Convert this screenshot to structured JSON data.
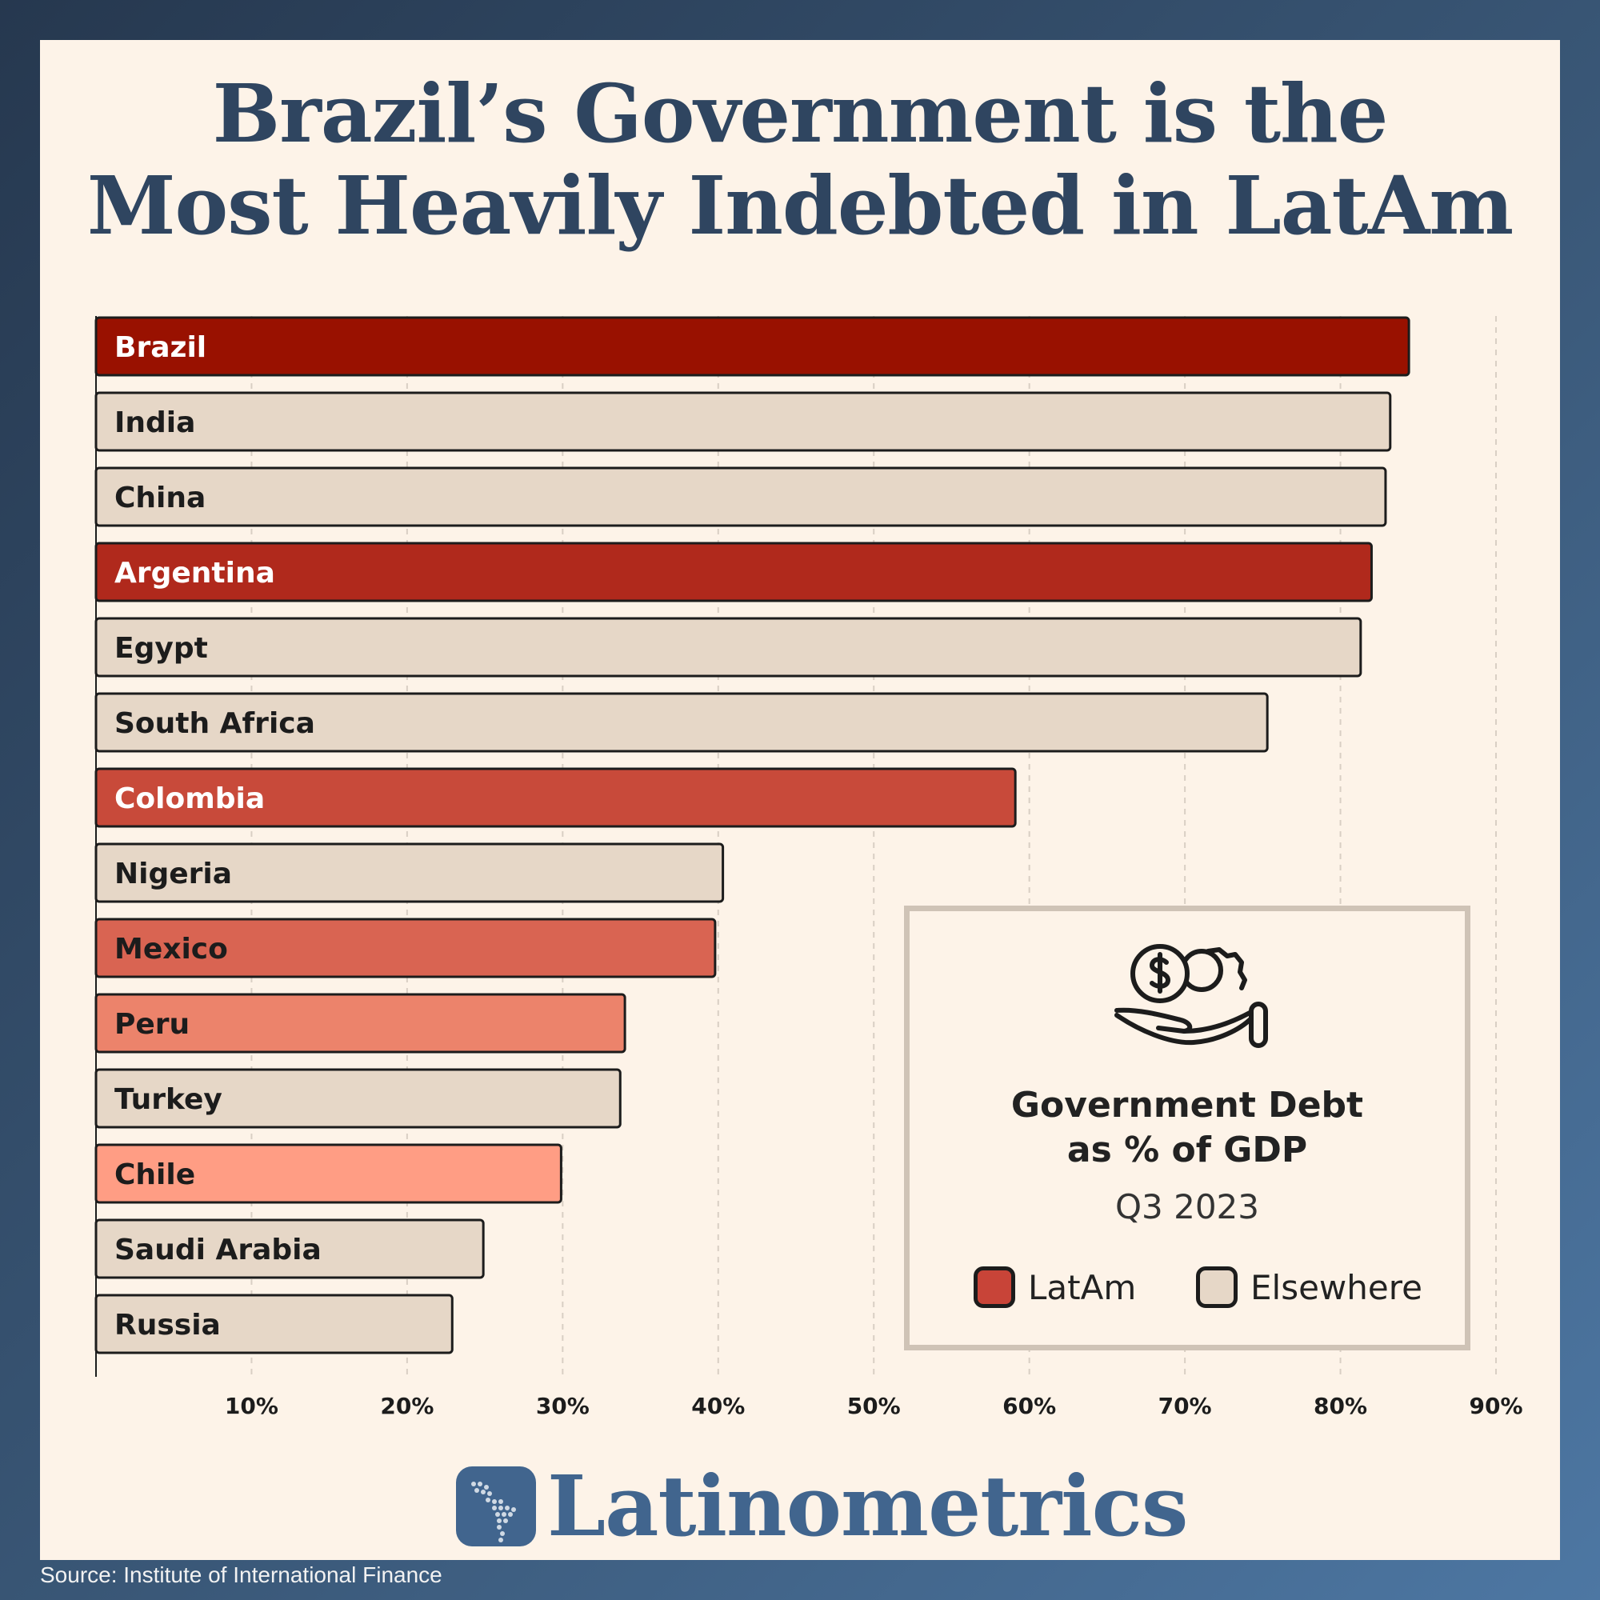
{
  "title_lines": [
    "Brazil’s Government is the",
    "Most Heavily Indebted in LatAm"
  ],
  "chart_data": {
    "type": "bar",
    "orientation": "horizontal",
    "title": "Brazil’s Government is the Most Heavily Indebted in LatAm",
    "xlabel": "",
    "ylabel": "",
    "xlim": [
      0,
      90
    ],
    "x_ticks": [
      10,
      20,
      30,
      40,
      50,
      60,
      70,
      80,
      90
    ],
    "tick_suffix": "%",
    "grid": "vertical-dashed",
    "categories": [
      "Brazil",
      "India",
      "China",
      "Argentina",
      "Egypt",
      "South Africa",
      "Colombia",
      "Nigeria",
      "Mexico",
      "Peru",
      "Turkey",
      "Chile",
      "Saudi Arabia",
      "Russia"
    ],
    "values": [
      84.4,
      83.2,
      82.9,
      82.0,
      81.3,
      75.3,
      59.1,
      40.3,
      39.8,
      34.0,
      33.7,
      29.9,
      24.9,
      22.9
    ],
    "groups": [
      "LatAm",
      "Elsewhere",
      "Elsewhere",
      "LatAm",
      "Elsewhere",
      "Elsewhere",
      "LatAm",
      "Elsewhere",
      "LatAm",
      "LatAm",
      "Elsewhere",
      "LatAm",
      "Elsewhere",
      "Elsewhere"
    ],
    "bar_colors": [
      "#991100",
      "#e6d7c7",
      "#e6d7c7",
      "#b0291c",
      "#e6d7c7",
      "#e6d7c7",
      "#c84a3a",
      "#e6d7c7",
      "#d96452",
      "#ec836b",
      "#e6d7c7",
      "#ff9d84",
      "#e6d7c7",
      "#e6d7c7"
    ],
    "label_colors": [
      "#ffffff",
      "#1c1c1c",
      "#1c1c1c",
      "#ffffff",
      "#1c1c1c",
      "#1c1c1c",
      "#ffffff",
      "#1c1c1c",
      "#1c1c1c",
      "#1c1c1c",
      "#1c1c1c",
      "#1c1c1c",
      "#1c1c1c",
      "#1c1c1c"
    ],
    "legend": {
      "placement": "bottom-right",
      "icon": "money-hand-icon",
      "title_lines": [
        "Government Debt",
        "as % of GDP"
      ],
      "period": "Q3 2023",
      "items": [
        {
          "label": "LatAm",
          "color": "#c84438"
        },
        {
          "label": "Elsewhere",
          "color": "#e6d7c7"
        }
      ]
    }
  },
  "brand": {
    "name": "Latinometrics",
    "color": "#41658e"
  },
  "source": "Source: Institute of International Finance"
}
